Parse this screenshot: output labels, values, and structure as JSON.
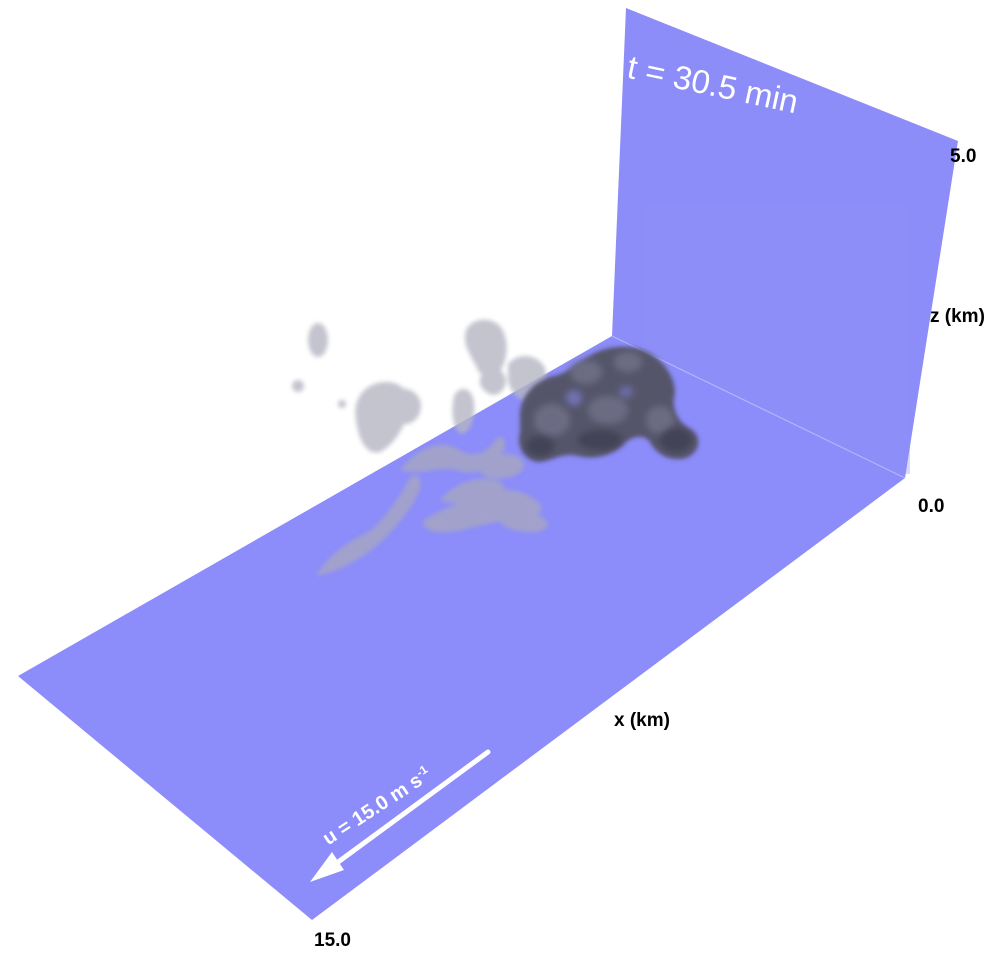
{
  "time_label": "t = 30.5 min",
  "wind": {
    "label_prefix": "u = 15.0 m s",
    "label_exponent": "-1"
  },
  "axes": {
    "z_label": "z (km)",
    "z_max": "5.0",
    "z_min": "0.0",
    "x_label": "x (km)",
    "x_max": "15.0"
  },
  "colors": {
    "plane": "#8c8cfa",
    "wall": "#8d8df9",
    "plume_dense": "#55556a",
    "plume_faint": "#a9a9bd",
    "arrow": "#ffffff"
  }
}
